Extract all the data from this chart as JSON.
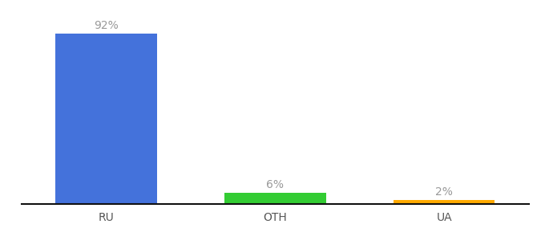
{
  "categories": [
    "RU",
    "OTH",
    "UA"
  ],
  "values": [
    92,
    6,
    2
  ],
  "bar_colors": [
    "#4472db",
    "#33cc33",
    "#ffaa00"
  ],
  "label_texts": [
    "92%",
    "6%",
    "2%"
  ],
  "background_color": "#ffffff",
  "text_color": "#999999",
  "label_fontsize": 10,
  "tick_fontsize": 10,
  "ylim": [
    0,
    100
  ],
  "bar_width": 0.6,
  "x_positions": [
    0,
    1,
    2
  ],
  "xlim": [
    -0.5,
    2.5
  ],
  "figsize": [
    6.8,
    3.0
  ],
  "dpi": 100,
  "spine_color": "#111111",
  "tick_color": "#555555"
}
